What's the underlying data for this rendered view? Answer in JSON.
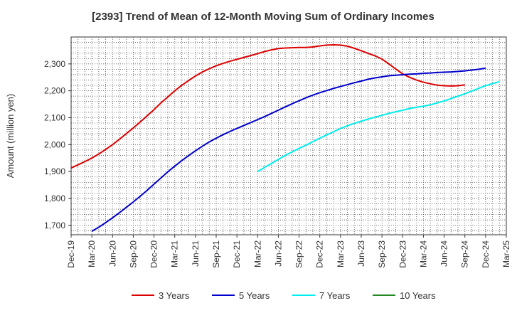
{
  "chart_data": {
    "type": "line",
    "title": "[2393]  Trend of Mean of 12-Month Moving Sum of Ordinary Incomes",
    "ylabel": "Amount (million yen)",
    "xlabel": "",
    "x_tick_labels": [
      "Dec-19",
      "Mar-20",
      "Jun-20",
      "Sep-20",
      "Dec-20",
      "Mar-21",
      "Jun-21",
      "Sep-21",
      "Dec-21",
      "Mar-22",
      "Jun-22",
      "Sep-22",
      "Dec-22",
      "Mar-23",
      "Jun-23",
      "Sep-23",
      "Dec-23",
      "Mar-24",
      "Jun-24",
      "Sep-24",
      "Dec-24",
      "Mar-25"
    ],
    "y_ticks": [
      1700,
      1800,
      1900,
      2000,
      2100,
      2200,
      2300
    ],
    "y_tick_labels": [
      "1,700",
      "1,800",
      "1,900",
      "2,000",
      "2,100",
      "2,200",
      "2,300"
    ],
    "ylim": [
      1665,
      2400
    ],
    "x_range_months": [
      "Dec-19",
      "Mar-25"
    ],
    "grid": true,
    "legend_position": "bottom",
    "series": [
      {
        "name": "3 Years",
        "color": "#dd0000",
        "points": [
          [
            "Dec-19",
            1913
          ],
          [
            "Jan-20",
            1925
          ],
          [
            "Feb-20",
            1937
          ],
          [
            "Mar-20",
            1950
          ],
          [
            "Apr-20",
            1965
          ],
          [
            "May-20",
            1982
          ],
          [
            "Jun-20",
            2000
          ],
          [
            "Jul-20",
            2020
          ],
          [
            "Aug-20",
            2041
          ],
          [
            "Sep-20",
            2062
          ],
          [
            "Oct-20",
            2084
          ],
          [
            "Nov-20",
            2107
          ],
          [
            "Dec-20",
            2130
          ],
          [
            "Jan-21",
            2155
          ],
          [
            "Feb-21",
            2177
          ],
          [
            "Mar-21",
            2200
          ],
          [
            "Apr-21",
            2220
          ],
          [
            "May-21",
            2238
          ],
          [
            "Jun-21",
            2255
          ],
          [
            "Jul-21",
            2270
          ],
          [
            "Aug-21",
            2282
          ],
          [
            "Sep-21",
            2293
          ],
          [
            "Oct-21",
            2302
          ],
          [
            "Nov-21",
            2310
          ],
          [
            "Dec-21",
            2317
          ],
          [
            "Jan-22",
            2324
          ],
          [
            "Feb-22",
            2331
          ],
          [
            "Mar-22",
            2338
          ],
          [
            "Apr-22",
            2346
          ],
          [
            "May-22",
            2352
          ],
          [
            "Jun-22",
            2357
          ],
          [
            "Jul-22",
            2359
          ],
          [
            "Aug-22",
            2360
          ],
          [
            "Sep-22",
            2361
          ],
          [
            "Oct-22",
            2361
          ],
          [
            "Nov-22",
            2363
          ],
          [
            "Dec-22",
            2367
          ],
          [
            "Jan-23",
            2370
          ],
          [
            "Feb-23",
            2371
          ],
          [
            "Mar-23",
            2370
          ],
          [
            "Apr-23",
            2366
          ],
          [
            "May-23",
            2358
          ],
          [
            "Jun-23",
            2349
          ],
          [
            "Jul-23",
            2339
          ],
          [
            "Aug-23",
            2330
          ],
          [
            "Sep-23",
            2318
          ],
          [
            "Oct-23",
            2300
          ],
          [
            "Nov-23",
            2281
          ],
          [
            "Dec-23",
            2263
          ],
          [
            "Jan-24",
            2250
          ],
          [
            "Feb-24",
            2240
          ],
          [
            "Mar-24",
            2232
          ],
          [
            "Apr-24",
            2226
          ],
          [
            "May-24",
            2221
          ],
          [
            "Jun-24",
            2219
          ],
          [
            "Jul-24",
            2218
          ],
          [
            "Aug-24",
            2219
          ],
          [
            "Sep-24",
            2222
          ]
        ]
      },
      {
        "name": "5 Years",
        "color": "#0000cc",
        "points": [
          [
            "Mar-20",
            1678
          ],
          [
            "Apr-20",
            1693
          ],
          [
            "May-20",
            1710
          ],
          [
            "Jun-20",
            1728
          ],
          [
            "Jul-20",
            1747
          ],
          [
            "Aug-20",
            1767
          ],
          [
            "Sep-20",
            1787
          ],
          [
            "Oct-20",
            1808
          ],
          [
            "Nov-20",
            1830
          ],
          [
            "Dec-20",
            1853
          ],
          [
            "Jan-21",
            1876
          ],
          [
            "Feb-21",
            1899
          ],
          [
            "Mar-21",
            1920
          ],
          [
            "Apr-21",
            1940
          ],
          [
            "May-21",
            1959
          ],
          [
            "Jun-21",
            1977
          ],
          [
            "Jul-21",
            1994
          ],
          [
            "Aug-21",
            2010
          ],
          [
            "Sep-21",
            2024
          ],
          [
            "Oct-21",
            2037
          ],
          [
            "Nov-21",
            2049
          ],
          [
            "Dec-21",
            2060
          ],
          [
            "Jan-22",
            2071
          ],
          [
            "Feb-22",
            2082
          ],
          [
            "Mar-22",
            2093
          ],
          [
            "Apr-22",
            2104
          ],
          [
            "May-22",
            2116
          ],
          [
            "Jun-22",
            2128
          ],
          [
            "Jul-22",
            2140
          ],
          [
            "Aug-22",
            2152
          ],
          [
            "Sep-22",
            2163
          ],
          [
            "Oct-22",
            2174
          ],
          [
            "Nov-22",
            2184
          ],
          [
            "Dec-22",
            2193
          ],
          [
            "Jan-23",
            2201
          ],
          [
            "Feb-23",
            2209
          ],
          [
            "Mar-23",
            2216
          ],
          [
            "Apr-23",
            2223
          ],
          [
            "May-23",
            2230
          ],
          [
            "Jun-23",
            2236
          ],
          [
            "Jul-23",
            2243
          ],
          [
            "Aug-23",
            2248
          ],
          [
            "Sep-23",
            2252
          ],
          [
            "Oct-23",
            2256
          ],
          [
            "Nov-23",
            2258
          ],
          [
            "Dec-23",
            2260
          ],
          [
            "Jan-24",
            2262
          ],
          [
            "Feb-24",
            2263
          ],
          [
            "Mar-24",
            2265
          ],
          [
            "Apr-24",
            2266
          ],
          [
            "May-24",
            2268
          ],
          [
            "Jun-24",
            2269
          ],
          [
            "Jul-24",
            2270
          ],
          [
            "Aug-24",
            2272
          ],
          [
            "Sep-24",
            2274
          ],
          [
            "Oct-24",
            2277
          ],
          [
            "Nov-24",
            2280
          ],
          [
            "Dec-24",
            2284
          ]
        ]
      },
      {
        "name": "7 Years",
        "color": "#00eeee",
        "points": [
          [
            "Mar-22",
            1900
          ],
          [
            "Apr-22",
            1915
          ],
          [
            "May-22",
            1930
          ],
          [
            "Jun-22",
            1945
          ],
          [
            "Jul-22",
            1960
          ],
          [
            "Aug-22",
            1973
          ],
          [
            "Sep-22",
            1986
          ],
          [
            "Oct-22",
            1998
          ],
          [
            "Nov-22",
            2011
          ],
          [
            "Dec-22",
            2024
          ],
          [
            "Jan-23",
            2036
          ],
          [
            "Feb-23",
            2048
          ],
          [
            "Mar-23",
            2060
          ],
          [
            "Apr-23",
            2070
          ],
          [
            "May-23",
            2079
          ],
          [
            "Jun-23",
            2087
          ],
          [
            "Jul-23",
            2095
          ],
          [
            "Aug-23",
            2102
          ],
          [
            "Sep-23",
            2109
          ],
          [
            "Oct-23",
            2116
          ],
          [
            "Nov-23",
            2122
          ],
          [
            "Dec-23",
            2128
          ],
          [
            "Jan-24",
            2134
          ],
          [
            "Feb-24",
            2139
          ],
          [
            "Mar-24",
            2143
          ],
          [
            "Apr-24",
            2148
          ],
          [
            "May-24",
            2155
          ],
          [
            "Jun-24",
            2162
          ],
          [
            "Jul-24",
            2171
          ],
          [
            "Aug-24",
            2180
          ],
          [
            "Sep-24",
            2189
          ],
          [
            "Oct-24",
            2199
          ],
          [
            "Nov-24",
            2209
          ],
          [
            "Dec-24",
            2219
          ],
          [
            "Jan-25",
            2227
          ],
          [
            "Feb-25",
            2234
          ]
        ]
      },
      {
        "name": "10 Years",
        "color": "#228822",
        "points": []
      }
    ]
  }
}
